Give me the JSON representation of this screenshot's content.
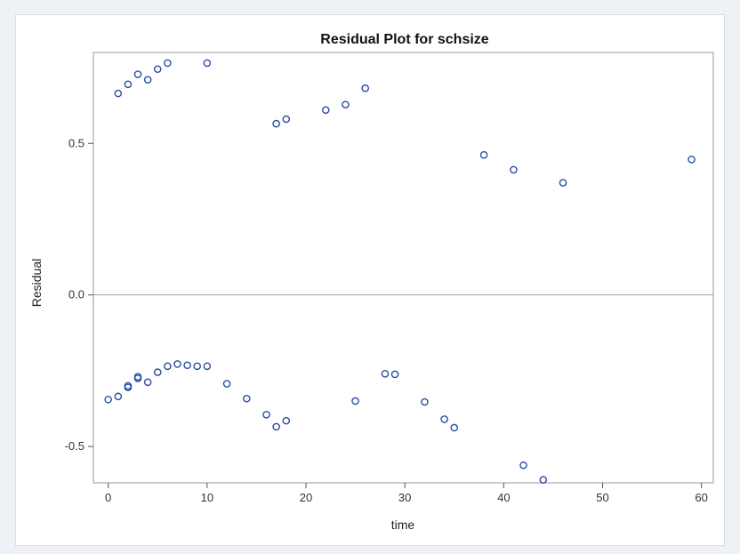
{
  "chart_data": {
    "type": "scatter",
    "title": "Residual Plot for schsize",
    "xlabel": "time",
    "ylabel": "Residual",
    "xlim": [
      -1.5,
      61.2
    ],
    "ylim": [
      -0.62,
      0.8
    ],
    "x_ticks": [
      0,
      10,
      20,
      30,
      40,
      50,
      60
    ],
    "y_ticks": [
      -0.5,
      0.0,
      0.5
    ],
    "y_tick_labels": [
      "-0.5",
      "0.0",
      "0.5"
    ],
    "reference_line_y": 0,
    "grid": false,
    "marker": "open-circle",
    "marker_color": "#2a4fa0",
    "series": [
      {
        "points": [
          [
            1,
            0.665
          ],
          [
            2,
            0.695
          ],
          [
            3,
            0.728
          ],
          [
            4,
            0.71
          ],
          [
            5,
            0.745
          ],
          [
            6,
            0.765
          ],
          [
            10,
            0.765
          ],
          [
            17,
            0.565
          ],
          [
            18,
            0.58
          ],
          [
            22,
            0.61
          ],
          [
            24,
            0.628
          ],
          [
            26,
            0.682
          ],
          [
            38,
            0.462
          ],
          [
            41,
            0.413
          ],
          [
            46,
            0.37
          ],
          [
            59,
            0.447
          ],
          [
            0,
            -0.345
          ],
          [
            1,
            -0.335
          ],
          [
            2,
            -0.305
          ],
          [
            2,
            -0.3
          ],
          [
            3,
            -0.27
          ],
          [
            3,
            -0.275
          ],
          [
            4,
            -0.288
          ],
          [
            5,
            -0.255
          ],
          [
            6,
            -0.235
          ],
          [
            7,
            -0.228
          ],
          [
            8,
            -0.232
          ],
          [
            9,
            -0.235
          ],
          [
            10,
            -0.235
          ],
          [
            12,
            -0.293
          ],
          [
            14,
            -0.342
          ],
          [
            16,
            -0.395
          ],
          [
            17,
            -0.435
          ],
          [
            18,
            -0.415
          ],
          [
            25,
            -0.35
          ],
          [
            28,
            -0.26
          ],
          [
            29,
            -0.262
          ],
          [
            32,
            -0.353
          ],
          [
            34,
            -0.41
          ],
          [
            35,
            -0.438
          ],
          [
            42,
            -0.562
          ],
          [
            44,
            -0.61
          ]
        ]
      }
    ]
  }
}
